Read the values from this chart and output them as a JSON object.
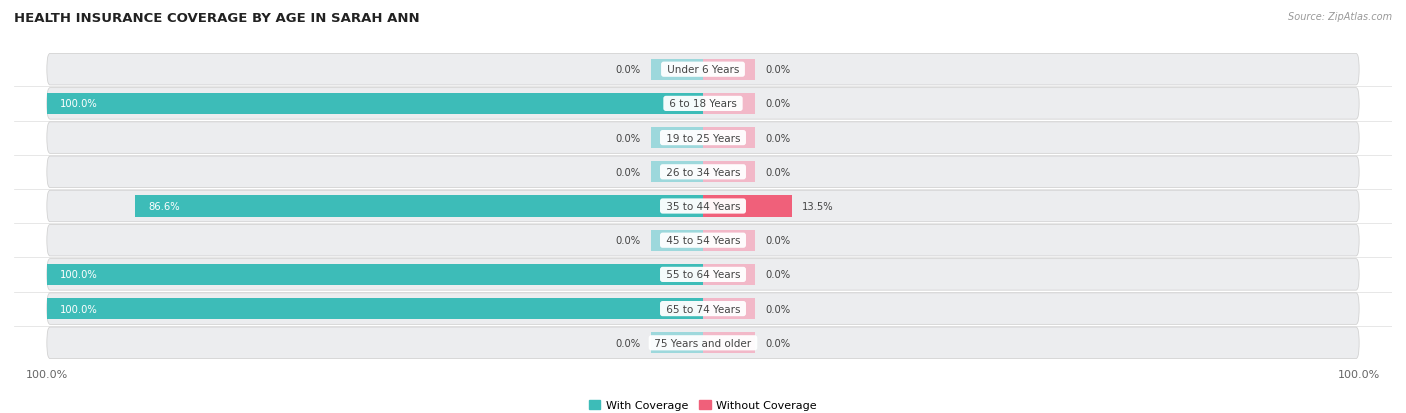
{
  "title": "HEALTH INSURANCE COVERAGE BY AGE IN SARAH ANN",
  "source_text": "Source: ZipAtlas.com",
  "categories": [
    "Under 6 Years",
    "6 to 18 Years",
    "19 to 25 Years",
    "26 to 34 Years",
    "35 to 44 Years",
    "45 to 54 Years",
    "55 to 64 Years",
    "65 to 74 Years",
    "75 Years and older"
  ],
  "with_coverage": [
    0.0,
    100.0,
    0.0,
    0.0,
    86.6,
    0.0,
    100.0,
    100.0,
    0.0
  ],
  "without_coverage": [
    0.0,
    0.0,
    0.0,
    0.0,
    13.5,
    0.0,
    0.0,
    0.0,
    0.0
  ],
  "color_with_full": "#3DBCB8",
  "color_without_full": "#F0607A",
  "color_with_zero": "#9DD8DC",
  "color_without_zero": "#F2B8C8",
  "row_bg_color": "#EAEAEC",
  "row_bg_alt_color": "#E2E2E6",
  "label_color_dark": "#444444",
  "label_color_white": "#FFFFFF",
  "title_color": "#222222",
  "source_color": "#999999",
  "axis_max": 100.0,
  "legend_with": "With Coverage",
  "legend_without": "Without Coverage",
  "zero_stub_size": 8.0
}
